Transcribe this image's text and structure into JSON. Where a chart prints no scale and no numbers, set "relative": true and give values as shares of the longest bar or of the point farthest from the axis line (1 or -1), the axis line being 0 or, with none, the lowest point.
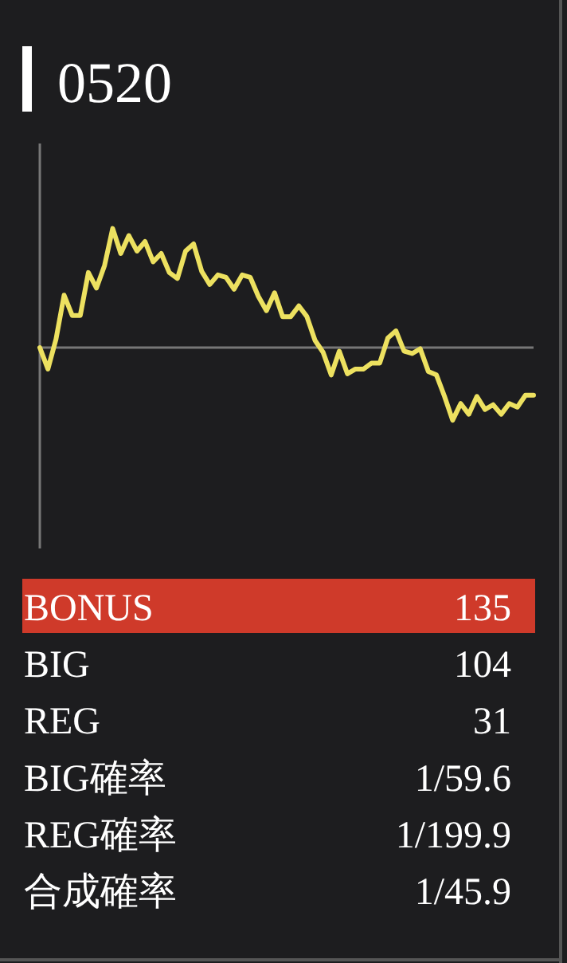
{
  "chart_data": {
    "type": "line",
    "title": "0520",
    "relative": true,
    "color": "#ede160",
    "categories": [
      null,
      null,
      null,
      null,
      null,
      null,
      null,
      null,
      null,
      null,
      null,
      null,
      null,
      null,
      null,
      null,
      null,
      null,
      null,
      null,
      null,
      null,
      null,
      null,
      null,
      null,
      null,
      null,
      null,
      null,
      null,
      null,
      null,
      null,
      null,
      null,
      null,
      null,
      null,
      null,
      null,
      null,
      null,
      null,
      null,
      null,
      null,
      null,
      null,
      null,
      null,
      null,
      null,
      null,
      null,
      null,
      null,
      null,
      null,
      null,
      null,
      null
    ],
    "values": [
      0.0,
      -0.18,
      0.07,
      0.44,
      0.27,
      0.27,
      0.63,
      0.5,
      0.69,
      1.0,
      0.79,
      0.94,
      0.81,
      0.89,
      0.72,
      0.79,
      0.63,
      0.58,
      0.81,
      0.87,
      0.64,
      0.53,
      0.61,
      0.59,
      0.49,
      0.61,
      0.59,
      0.43,
      0.31,
      0.46,
      0.26,
      0.26,
      0.35,
      0.26,
      0.06,
      -0.04,
      -0.23,
      -0.03,
      -0.22,
      -0.18,
      -0.18,
      -0.13,
      -0.13,
      0.08,
      0.14,
      -0.03,
      -0.05,
      -0.01,
      -0.2,
      -0.23,
      -0.41,
      -0.61,
      -0.47,
      -0.56,
      -0.41,
      -0.52,
      -0.48,
      -0.56,
      -0.47,
      -0.5,
      -0.4,
      -0.4
    ],
    "annotations": [
      "BONUS",
      "135",
      "BIG",
      "104",
      "REG",
      "31",
      "BIG確率",
      "1/59.6",
      "REG確率",
      "1/199.9",
      "合成確率",
      "1/45.9"
    ]
  }
}
